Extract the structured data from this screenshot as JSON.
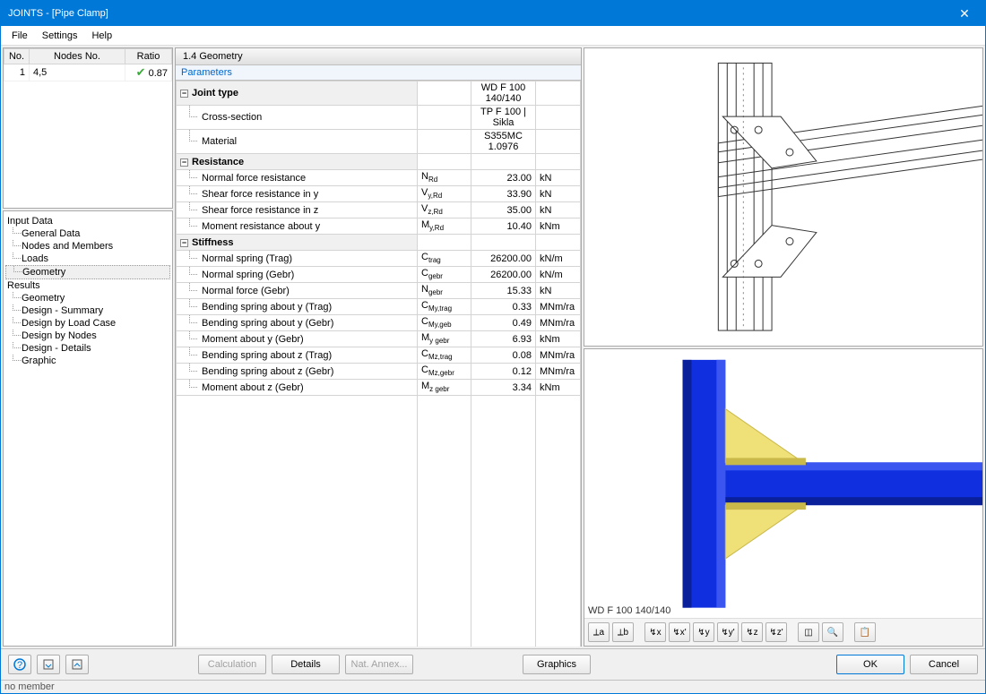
{
  "window": {
    "title": "JOINTS - [Pipe Clamp]"
  },
  "menu": {
    "file": "File",
    "settings": "Settings",
    "help": "Help"
  },
  "list": {
    "headers": {
      "no": "No.",
      "nodes": "Nodes No.",
      "ratio": "Ratio"
    },
    "rows": [
      {
        "no": "1",
        "nodes": "4,5",
        "ratio": "0.87",
        "status": "ok"
      }
    ]
  },
  "tree": {
    "input": "Input Data",
    "input_items": [
      "General Data",
      "Nodes and Members",
      "Loads",
      "Geometry"
    ],
    "results": "Results",
    "results_items": [
      "Geometry",
      "Design - Summary",
      "Design by Load Case",
      "Design by Nodes",
      "Design - Details",
      "Graphic"
    ],
    "selected": "Geometry"
  },
  "section": {
    "title": "1.4 Geometry",
    "subtitle": "Parameters"
  },
  "params": {
    "groups": [
      {
        "label": "Joint type",
        "direct_value": "WD F 100 140/140",
        "rows": [
          {
            "name": "Cross-section",
            "sym": "",
            "val": "TP F 100 | Sikla",
            "unit": "",
            "val_in_unit_col": false,
            "centered": true
          },
          {
            "name": "Material",
            "sym": "",
            "val": "S355MC 1.0976",
            "unit": "",
            "centered": true
          }
        ]
      },
      {
        "label": "Resistance",
        "rows": [
          {
            "name": "Normal force resistance",
            "sym": "N",
            "sub": "Rd",
            "val": "23.00",
            "unit": "kN"
          },
          {
            "name": "Shear force resistance in y",
            "sym": "V",
            "sub": "y,Rd",
            "val": "33.90",
            "unit": "kN"
          },
          {
            "name": "Shear force resistance in z",
            "sym": "V",
            "sub": "z,Rd",
            "val": "35.00",
            "unit": "kN"
          },
          {
            "name": "Moment resistance about y",
            "sym": "M",
            "sub": "y,Rd",
            "val": "10.40",
            "unit": "kNm"
          }
        ]
      },
      {
        "label": "Stiffness",
        "rows": [
          {
            "name": "Normal spring (Trag)",
            "sym": "C",
            "sub": "trag",
            "val": "26200.00",
            "unit": "kN/m"
          },
          {
            "name": "Normal spring (Gebr)",
            "sym": "C",
            "sub": "gebr",
            "val": "26200.00",
            "unit": "kN/m"
          },
          {
            "name": "Normal force (Gebr)",
            "sym": "N",
            "sub": "gebr",
            "val": "15.33",
            "unit": "kN"
          },
          {
            "name": "Bending spring about y (Trag)",
            "sym": "C",
            "sub": "My,trag",
            "val": "0.33",
            "unit": "MNm/ra"
          },
          {
            "name": "Bending spring about y (Gebr)",
            "sym": "C",
            "sub": "My,geb",
            "val": "0.49",
            "unit": "MNm/ra"
          },
          {
            "name": "Moment about y (Gebr)",
            "sym": "M",
            "sub": "y gebr",
            "val": "6.93",
            "unit": "kNm"
          },
          {
            "name": "Bending spring about z (Trag)",
            "sym": "C",
            "sub": "Mz,trag",
            "val": "0.08",
            "unit": "MNm/ra"
          },
          {
            "name": "Bending spring about z (Gebr)",
            "sym": "C",
            "sub": "Mz,gebr",
            "val": "0.12",
            "unit": "MNm/ra"
          },
          {
            "name": "Moment about z (Gebr)",
            "sym": "M",
            "sub": "z gebr",
            "val": "3.34",
            "unit": "kNm"
          }
        ]
      }
    ]
  },
  "viz": {
    "model_label": "WD F 100 140/140",
    "toolbar_icons": [
      "⟂a",
      "⟂b",
      "↯x",
      "↯x'",
      "↯y",
      "↯y'",
      "↯z",
      "↯z'",
      "◫",
      "🔍",
      "📋"
    ],
    "colors": {
      "beam": "#1030e0",
      "beam_dark": "#0a1f9a",
      "bracket": "#f0e078",
      "bracket_dark": "#c9b84a",
      "line": "#333333"
    }
  },
  "buttons": {
    "calculation": "Calculation",
    "details": "Details",
    "nat_annex": "Nat. Annex...",
    "graphics": "Graphics",
    "ok": "OK",
    "cancel": "Cancel"
  },
  "status": {
    "text": "no member"
  }
}
